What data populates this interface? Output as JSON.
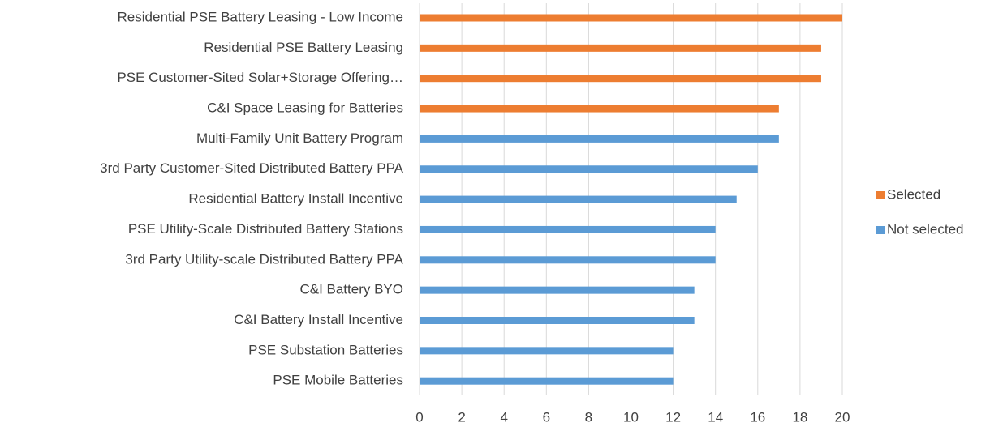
{
  "chart_data": {
    "type": "barh",
    "categories": [
      "Residential PSE Battery Leasing - Low Income",
      "Residential PSE Battery Leasing",
      "PSE Customer-Sited Solar+Storage Offering…",
      "C&I Space Leasing for Batteries",
      "Multi-Family Unit Battery Program",
      "3rd Party Customer-Sited Distributed Battery PPA",
      "Residential Battery Install Incentive",
      "PSE Utility-Scale Distributed Battery Stations",
      "3rd Party Utility-scale Distributed Battery PPA",
      "C&I Battery BYO",
      "C&I Battery Install Incentive",
      "PSE Substation Batteries",
      "PSE Mobile Batteries"
    ],
    "series": [
      {
        "name": "Selected",
        "color": "#ed7d31",
        "values": [
          20,
          19,
          19,
          17,
          null,
          null,
          null,
          null,
          null,
          null,
          null,
          null,
          null
        ]
      },
      {
        "name": "Not selected",
        "color": "#5b9bd5",
        "values": [
          null,
          null,
          null,
          null,
          17,
          16,
          15,
          14,
          14,
          13,
          13,
          12,
          12
        ]
      }
    ],
    "xlim": [
      0,
      20
    ],
    "xticks": [
      0,
      2,
      4,
      6,
      8,
      10,
      12,
      14,
      16,
      18,
      20
    ],
    "grid": true,
    "legend": "right"
  }
}
